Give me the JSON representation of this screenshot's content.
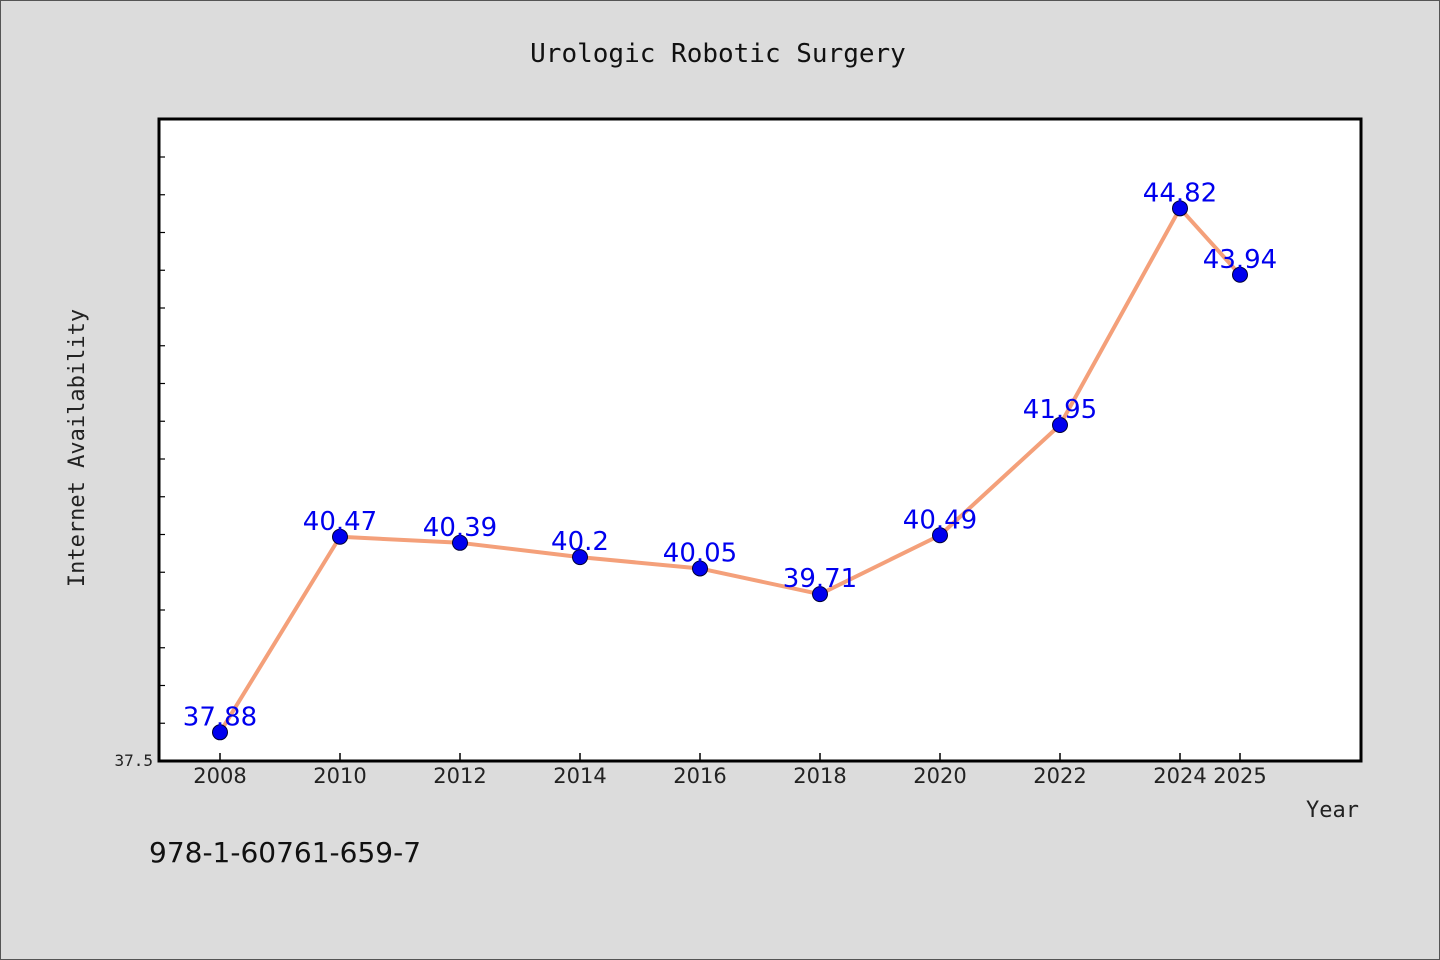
{
  "chart_data": {
    "type": "line",
    "title": "Urologic Robotic Surgery",
    "xlabel": "Year",
    "ylabel": "Internet Availability",
    "x": [
      "2008",
      "2010",
      "2012",
      "2014",
      "2016",
      "2018",
      "2020",
      "2022",
      "2024",
      "2025"
    ],
    "series": [
      {
        "values": [
          37.88,
          40.47,
          40.39,
          40.2,
          40.05,
          39.71,
          40.49,
          41.95,
          44.82,
          43.94
        ],
        "labels": [
          "37.88",
          "40.47",
          "40.39",
          "40.2",
          "40.05",
          "39.71",
          "40.49",
          "41.95",
          "44.82",
          "43.94"
        ]
      }
    ],
    "y_tick_labels": [
      "37.5"
    ],
    "ylim": [
      37.5,
      46.0
    ],
    "grid": false,
    "legend": "none",
    "colors": {
      "line": "#f4a07a",
      "marker": "#0000ee",
      "label": "#0000ee",
      "plot_background": "#ffffff",
      "page_background": "#dcdcdc"
    }
  },
  "caption": "978-1-60761-659-7"
}
